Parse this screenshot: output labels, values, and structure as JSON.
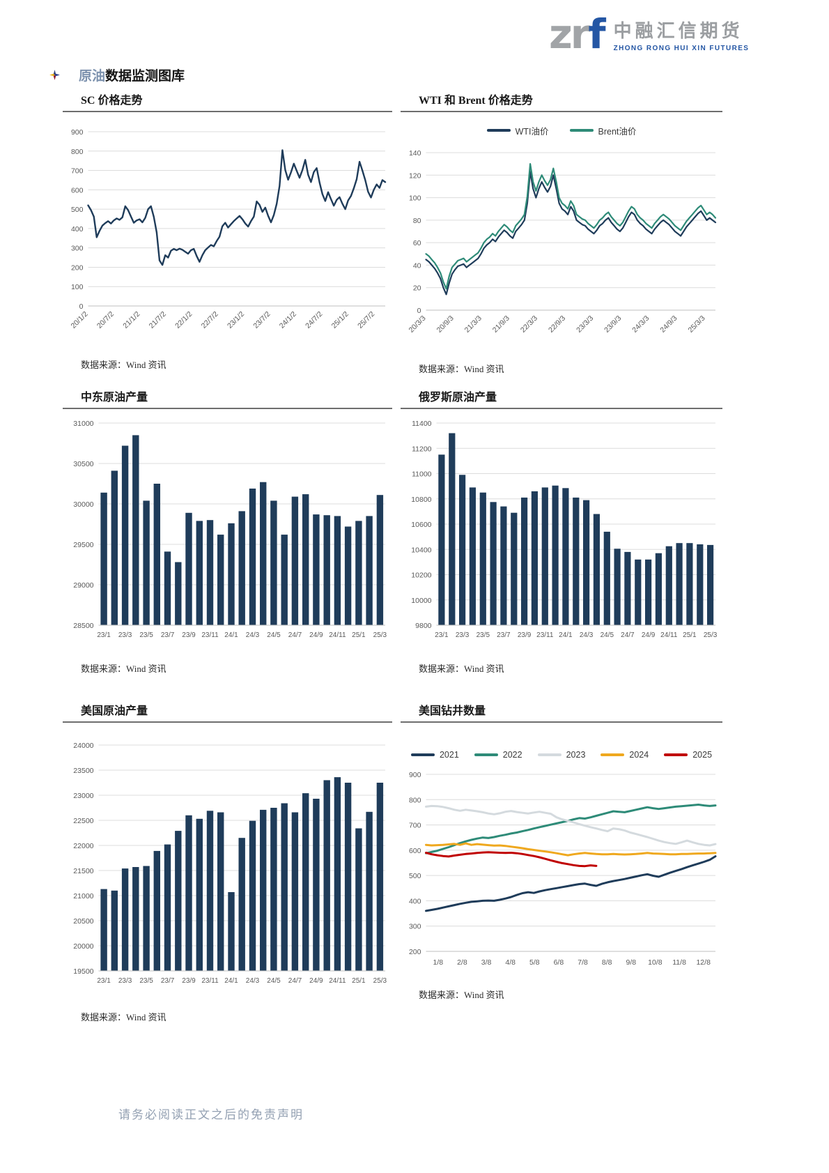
{
  "header": {
    "logo_zr": "zr",
    "logo_f": "f",
    "logo_cn": "中融汇信期货",
    "logo_en": "ZHONG RONG HUI XIN FUTURES"
  },
  "page_title": {
    "highlight": "原油",
    "rest": "数据监测图库"
  },
  "source_label": "数据来源：Wind 资讯",
  "footer_disclaimer": "请务必阅读正文之后的免责声明",
  "colors": {
    "navy": "#1f3c5a",
    "teal": "#2e8b78",
    "gray_2023": "#d4dade",
    "orange": "#efa81e",
    "red": "#c00000",
    "grid": "#dcdcdc",
    "axis_text": "#595959"
  },
  "charts": {
    "sc": {
      "title": "SC 价格走势",
      "chart_data": {
        "type": "line",
        "title": "SC 价格走势",
        "xlabel": "",
        "ylabel": "",
        "grid": true,
        "legend": false,
        "ylim": [
          0,
          900
        ],
        "ytick_step": 100,
        "rotate_x": true,
        "x_labels": [
          "20/1/2",
          "20/7/2",
          "21/1/2",
          "21/7/2",
          "22/1/2",
          "22/7/2",
          "23/1/2",
          "23/7/2",
          "24/1/2",
          "24/7/2",
          "25/1/2",
          "25/7/2"
        ],
        "line_width": 2.4,
        "series": [
          {
            "name": "SC",
            "color": "navy",
            "values": [
              520,
              495,
              462,
              355,
              388,
              415,
              428,
              438,
              426,
              442,
              452,
              445,
              458,
              515,
              495,
              462,
              430,
              442,
              448,
              432,
              455,
              500,
              515,
              460,
              380,
              235,
              212,
              262,
              250,
              285,
              295,
              288,
              296,
              290,
              280,
              270,
              288,
              295,
              258,
              228,
              262,
              288,
              302,
              315,
              308,
              335,
              358,
              412,
              430,
              405,
              422,
              438,
              452,
              465,
              448,
              426,
              410,
              438,
              462,
              540,
              522,
              486,
              508,
              466,
              432,
              470,
              528,
              620,
              805,
              702,
              652,
              690,
              735,
              698,
              662,
              702,
              755,
              678,
              640,
              692,
              712,
              638,
              578,
              542,
              588,
              552,
              518,
              548,
              562,
              528,
              500,
              545,
              568,
              608,
              655,
              745,
              700,
              650,
              590,
              560,
              600,
              628,
              610,
              650,
              640
            ]
          }
        ]
      }
    },
    "wti_brent": {
      "title": "WTI 和 Brent 价格走势",
      "chart_data": {
        "type": "line",
        "title": "WTI 和 Brent 价格走势",
        "xlabel": "",
        "ylabel": "",
        "grid": true,
        "legend": true,
        "legend_position": "top",
        "ylim": [
          0,
          140
        ],
        "ytick_step": 20,
        "rotate_x": true,
        "x_labels": [
          "20/3/3",
          "20/9/3",
          "21/3/3",
          "21/9/3",
          "22/3/3",
          "22/9/3",
          "23/3/3",
          "23/9/3",
          "24/3/3",
          "24/9/3",
          "25/3/3"
        ],
        "line_width": 2.2,
        "series": [
          {
            "name": "WTI油价",
            "color": "navy",
            "values": [
              45,
              43,
              40,
              37,
              33,
              28,
              20,
              14,
              24,
              32,
              36,
              39,
              40,
              41,
              38,
              40,
              42,
              44,
              46,
              50,
              55,
              58,
              60,
              63,
              61,
              65,
              68,
              71,
              69,
              66,
              64,
              70,
              73,
              76,
              80,
              95,
              123,
              108,
              100,
              108,
              114,
              109,
              105,
              110,
              120,
              108,
              95,
              90,
              88,
              85,
              92,
              88,
              80,
              78,
              76,
              75,
              72,
              70,
              68,
              71,
              75,
              77,
              80,
              82,
              78,
              75,
              72,
              70,
              73,
              78,
              83,
              87,
              85,
              80,
              77,
              75,
              72,
              70,
              68,
              72,
              75,
              78,
              80,
              78,
              76,
              73,
              70,
              68,
              66,
              70,
              74,
              77,
              80,
              83,
              86,
              88,
              84,
              80,
              82,
              80,
              78
            ]
          },
          {
            "name": "Brent油价",
            "color": "teal",
            "values": [
              50,
              48,
              45,
              42,
              38,
              33,
              25,
              19,
              30,
              38,
              41,
              44,
              45,
              46,
              43,
              45,
              47,
              49,
              51,
              55,
              60,
              63,
              65,
              68,
              66,
              70,
              73,
              76,
              74,
              71,
              69,
              75,
              78,
              81,
              85,
              101,
              130,
              114,
              106,
              114,
              120,
              115,
              111,
              116,
              126,
              114,
              100,
              95,
              93,
              90,
              97,
              93,
              85,
              83,
              81,
              80,
              77,
              75,
              73,
              76,
              80,
              82,
              85,
              87,
              83,
              80,
              77,
              75,
              78,
              83,
              88,
              92,
              90,
              85,
              82,
              80,
              77,
              75,
              73,
              77,
              80,
              83,
              85,
              83,
              81,
              78,
              75,
              73,
              71,
              75,
              79,
              82,
              85,
              88,
              91,
              93,
              89,
              85,
              87,
              85,
              82
            ]
          }
        ]
      }
    },
    "mideast": {
      "title": "中东原油产量",
      "chart_data": {
        "type": "bar",
        "title": "中东原油产量",
        "xlabel": "",
        "ylabel": "",
        "grid": true,
        "legend": false,
        "ylim": [
          28500,
          31000
        ],
        "ytick_step": 500,
        "label_every": 2,
        "color": "navy",
        "categories": [
          "23/1",
          "23/2",
          "23/3",
          "23/4",
          "23/5",
          "23/6",
          "23/7",
          "23/8",
          "23/9",
          "23/10",
          "23/11",
          "23/12",
          "24/1",
          "24/2",
          "24/3",
          "24/4",
          "24/5",
          "24/6",
          "24/7",
          "24/8",
          "24/9",
          "24/10",
          "24/11",
          "24/12",
          "25/1",
          "25/2",
          "25/3"
        ],
        "values": [
          30140,
          30410,
          30720,
          30850,
          30040,
          30250,
          29410,
          29280,
          29890,
          29790,
          29800,
          29620,
          29760,
          29910,
          30190,
          30270,
          30040,
          29620,
          30090,
          30120,
          29870,
          29860,
          29850,
          29720,
          29790,
          29850,
          30110
        ]
      }
    },
    "russia": {
      "title": "俄罗斯原油产量",
      "chart_data": {
        "type": "bar",
        "title": "俄罗斯原油产量",
        "xlabel": "",
        "ylabel": "",
        "grid": true,
        "legend": false,
        "ylim": [
          9800,
          11400
        ],
        "ytick_step": 200,
        "label_every": 2,
        "color": "navy",
        "categories": [
          "23/1",
          "23/2",
          "23/3",
          "23/4",
          "23/5",
          "23/6",
          "23/7",
          "23/8",
          "23/9",
          "23/10",
          "23/11",
          "23/12",
          "24/1",
          "24/2",
          "24/3",
          "24/4",
          "24/5",
          "24/6",
          "24/7",
          "24/8",
          "24/9",
          "24/10",
          "24/11",
          "24/12",
          "25/1",
          "25/2",
          "25/3"
        ],
        "values": [
          11150,
          11320,
          10990,
          10890,
          10850,
          10775,
          10740,
          10690,
          10810,
          10860,
          10890,
          10905,
          10885,
          10810,
          10790,
          10680,
          10540,
          10405,
          10380,
          10320,
          10320,
          10370,
          10425,
          10450,
          10450,
          10440,
          10435
        ]
      }
    },
    "us_prod": {
      "title": "美国原油产量",
      "chart_data": {
        "type": "bar",
        "title": "美国原油产量",
        "xlabel": "",
        "ylabel": "",
        "grid": true,
        "legend": false,
        "ylim": [
          19500,
          24000
        ],
        "ytick_step": 500,
        "label_every": 2,
        "color": "navy",
        "categories": [
          "23/1",
          "23/2",
          "23/3",
          "23/4",
          "23/5",
          "23/6",
          "23/7",
          "23/8",
          "23/9",
          "23/10",
          "23/11",
          "23/12",
          "24/1",
          "24/2",
          "24/3",
          "24/4",
          "24/5",
          "24/6",
          "24/7",
          "24/8",
          "24/9",
          "24/10",
          "24/11",
          "24/12",
          "25/1",
          "25/2",
          "25/3"
        ],
        "values": [
          21130,
          21100,
          21540,
          21570,
          21590,
          21890,
          22020,
          22290,
          22600,
          22530,
          22690,
          22660,
          21070,
          22150,
          22490,
          22710,
          22750,
          22840,
          22660,
          23040,
          22930,
          23300,
          23360,
          23250,
          22340,
          22670,
          23250
        ]
      }
    },
    "us_rigs": {
      "title": "美国钻井数量",
      "chart_data": {
        "type": "line",
        "title": "美国钻井数量",
        "xlabel": "",
        "ylabel": "",
        "grid": true,
        "legend": true,
        "legend_position": "top",
        "ylim": [
          200,
          900
        ],
        "ytick_step": 100,
        "rotate_x": false,
        "x_count": 52,
        "x_labels": [
          "1/8",
          "2/8",
          "3/8",
          "4/8",
          "5/8",
          "6/8",
          "7/8",
          "8/8",
          "9/8",
          "10/8",
          "11/8",
          "12/8"
        ],
        "line_width": 3,
        "series": [
          {
            "name": "2021",
            "color": "navy",
            "values": [
              360,
              364,
              368,
              373,
              378,
              383,
              388,
              392,
              396,
              398,
              400,
              401,
              400,
              404,
              409,
              415,
              423,
              430,
              434,
              431,
              437,
              442,
              446,
              450,
              454,
              458,
              462,
              466,
              468,
              463,
              459,
              467,
              473,
              478,
              482,
              486,
              491,
              496,
              501,
              505,
              499,
              495,
              503,
              511,
              518,
              525,
              533,
              540,
              547,
              554,
              562,
              576
            ]
          },
          {
            "name": "2022",
            "color": "teal",
            "values": [
              588,
              593,
              598,
              605,
              612,
              620,
              628,
              635,
              641,
              646,
              650,
              648,
              652,
              657,
              661,
              666,
              670,
              675,
              680,
              686,
              691,
              696,
              701,
              706,
              711,
              716,
              722,
              727,
              725,
              730,
              736,
              742,
              748,
              754,
              752,
              750,
              755,
              760,
              765,
              770,
              766,
              763,
              766,
              769,
              772,
              774,
              776,
              778,
              780,
              777,
              775,
              777
            ]
          },
          {
            "name": "2023",
            "color": "gray_2023",
            "values": [
              772,
              775,
              774,
              771,
              766,
              760,
              756,
              760,
              757,
              754,
              750,
              745,
              742,
              746,
              752,
              755,
              751,
              748,
              745,
              749,
              752,
              748,
              744,
              730,
              722,
              716,
              710,
              703,
              697,
              691,
              686,
              680,
              675,
              686,
              683,
              678,
              670,
              664,
              658,
              652,
              645,
              638,
              632,
              628,
              625,
              631,
              638,
              631,
              625,
              621,
              619,
              624
            ]
          },
          {
            "name": "2024",
            "color": "orange",
            "values": [
              621,
              619,
              620,
              621,
              623,
              625,
              621,
              627,
              621,
              624,
              622,
              620,
              618,
              619,
              617,
              614,
              611,
              608,
              604,
              601,
              598,
              595,
              592,
              588,
              584,
              580,
              584,
              587,
              589,
              587,
              585,
              584,
              584,
              585,
              584,
              583,
              584,
              585,
              587,
              589,
              587,
              586,
              585,
              584,
              584,
              585,
              585,
              586,
              587,
              587,
              588,
              589
            ]
          },
          {
            "name": "2025",
            "color": "red",
            "values": [
              590,
              584,
              580,
              577,
              575,
              579,
              582,
              585,
              587,
              589,
              591,
              592,
              591,
              590,
              589,
              590,
              588,
              585,
              581,
              577,
              572,
              566,
              560,
              554,
              549,
              545,
              541,
              538,
              537,
              540,
              538
            ]
          }
        ]
      }
    }
  }
}
